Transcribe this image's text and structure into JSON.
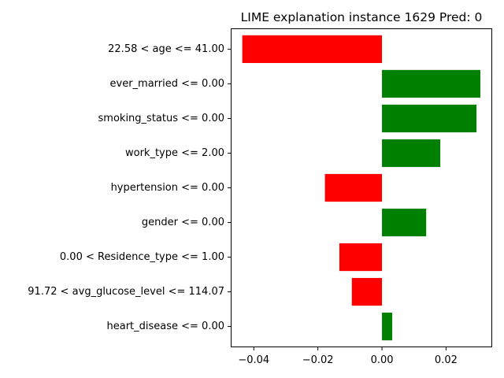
{
  "chart_data": {
    "type": "bar",
    "orientation": "horizontal",
    "title": "LIME explanation instance 1629 Pred: 0",
    "xlabel": "",
    "ylabel": "",
    "categories": [
      "22.58 < age <= 41.00",
      "ever_married <= 0.00",
      "smoking_status <= 0.00",
      "work_type <= 2.00",
      "hypertension <= 0.00",
      "gender <= 0.00",
      "0.00 < Residence_type <= 1.00",
      "91.72 < avg_glucose_level <= 114.07",
      "heart_disease <= 0.00"
    ],
    "values": [
      -0.0436,
      0.0307,
      0.0295,
      0.0182,
      -0.0178,
      0.0138,
      -0.0133,
      -0.0094,
      0.0032
    ],
    "xlim": [
      -0.0472,
      0.0344
    ],
    "xticks": [
      -0.04,
      -0.02,
      0.0,
      0.02
    ],
    "xtick_labels": [
      "−0.04",
      "−0.02",
      "0.00",
      "0.02"
    ],
    "grid": false,
    "legend": "none",
    "colors": {
      "positive": "#008000",
      "negative": "#ff0000"
    }
  }
}
